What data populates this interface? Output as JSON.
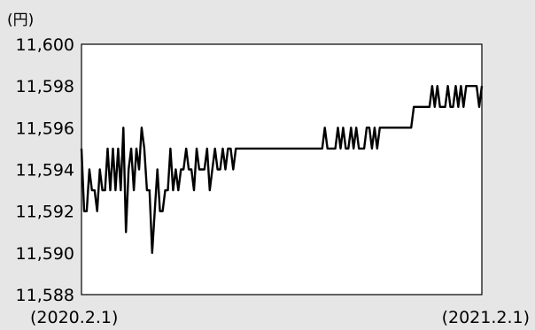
{
  "chart_data": {
    "type": "line",
    "unit_label": "(円)",
    "ylim": [
      11588,
      11600
    ],
    "yticks": [
      "11,600",
      "11,598",
      "11,596",
      "11,594",
      "11,592",
      "11,590",
      "11,588"
    ],
    "ytick_values": [
      11600,
      11598,
      11596,
      11594,
      11592,
      11590,
      11588
    ],
    "x_start_label": "(2020.2.1)",
    "x_end_label": "(2021.2.1)",
    "grid": false,
    "colors": {
      "line": "#000000",
      "plot_bg": "#ffffff",
      "page_bg": "#e6e6e6"
    },
    "series": [
      {
        "values": [
          11595,
          11592,
          11592,
          11594,
          11593,
          11593,
          11592,
          11594,
          11593,
          11593,
          11595,
          11593,
          11595,
          11593,
          11595,
          11593,
          11596,
          11591,
          11594,
          11595,
          11593,
          11595,
          11594,
          11596,
          11595,
          11593,
          11593,
          11590,
          11592,
          11594,
          11592,
          11592,
          11593,
          11593,
          11595,
          11593,
          11594,
          11593,
          11594,
          11594,
          11595,
          11594,
          11594,
          11593,
          11595,
          11594,
          11594,
          11594,
          11595,
          11593,
          11594,
          11595,
          11594,
          11594,
          11595,
          11594,
          11595,
          11595,
          11594,
          11595,
          11595,
          11595,
          11595,
          11595,
          11595,
          11595,
          11595,
          11595,
          11595,
          11595,
          11595,
          11595,
          11595,
          11595,
          11595,
          11595,
          11595,
          11595,
          11595,
          11595,
          11595,
          11595,
          11595,
          11595,
          11595,
          11595,
          11595,
          11595,
          11595,
          11595,
          11595,
          11595,
          11595,
          11596,
          11595,
          11595,
          11595,
          11595,
          11596,
          11595,
          11596,
          11595,
          11595,
          11596,
          11595,
          11596,
          11595,
          11595,
          11595,
          11596,
          11596,
          11595,
          11596,
          11595,
          11596,
          11596,
          11596,
          11596,
          11596,
          11596,
          11596,
          11596,
          11596,
          11596,
          11596,
          11596,
          11596,
          11597,
          11597,
          11597,
          11597,
          11597,
          11597,
          11597,
          11598,
          11597,
          11598,
          11597,
          11597,
          11597,
          11598,
          11597,
          11597,
          11598,
          11597,
          11598,
          11597,
          11598,
          11598,
          11598,
          11598,
          11598,
          11597,
          11598
        ]
      }
    ]
  }
}
